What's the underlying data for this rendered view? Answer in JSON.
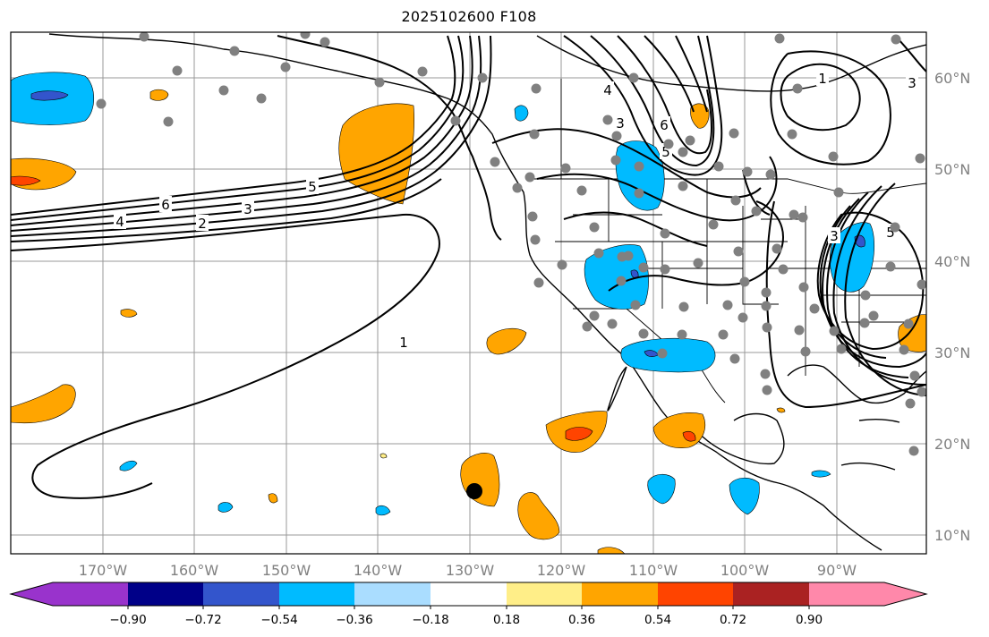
{
  "title": "2025102600 F108",
  "lat_labels": [
    "60°N",
    "50°N",
    "40°N",
    "30°N",
    "20°N",
    "10°N"
  ],
  "lon_labels": [
    "170°W",
    "160°W",
    "150°W",
    "140°W",
    "130°W",
    "120°W",
    "110°W",
    "100°W",
    "90°W"
  ],
  "colorbar": {
    "colors": [
      "#9933cc",
      "#000088",
      "#3355cc",
      "#00bbff",
      "#aaddff",
      "#ffffff",
      "#ffee88",
      "#ffa500",
      "#ff4400",
      "#aa2222",
      "#ff88aa"
    ],
    "tick_labels": [
      "−0.90",
      "−0.72",
      "−0.54",
      "−0.36",
      "−0.18",
      "0.18",
      "0.36",
      "0.54",
      "0.72",
      "0.90"
    ]
  },
  "contour_labels": [
    "1",
    "2",
    "3",
    "4",
    "5",
    "6"
  ],
  "colors": {
    "gridline": "#999999",
    "station_dot": "#808080",
    "contour": "#000000"
  }
}
